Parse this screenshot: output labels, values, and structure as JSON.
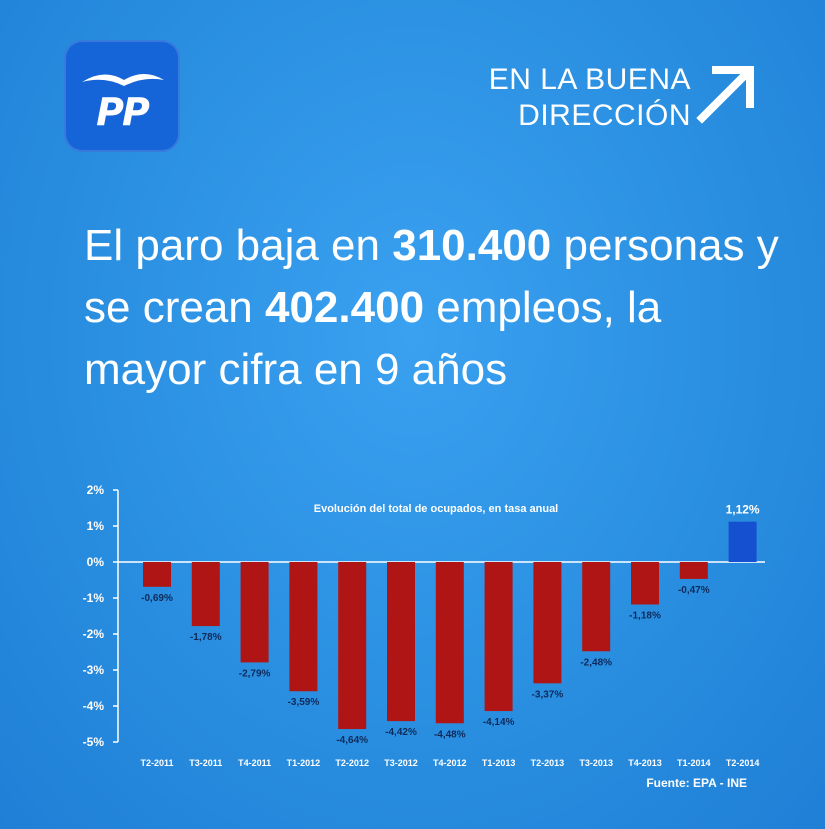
{
  "logo": {
    "text": "PP"
  },
  "slogan": {
    "line1_prefix": "EN LA",
    "line1_emph": "BUENA",
    "line2": "DIRECCIÓN"
  },
  "headline": {
    "part1": "El paro baja en ",
    "num1": "310.400",
    "part2": " personas y se crean ",
    "num2": "402.400",
    "part3": " empleos, la mayor cifra en 9 años"
  },
  "source": "Fuente: EPA - INE",
  "colors": {
    "negative_bar": "#b01515",
    "positive_bar": "#1550d0",
    "background": "#2a8fe0"
  },
  "chart_data": {
    "type": "bar",
    "title": "Evolución del total de ocupados, en tasa anual",
    "categories": [
      "T2-2011",
      "T3-2011",
      "T4-2011",
      "T1-2012",
      "T2-2012",
      "T3-2012",
      "T4-2012",
      "T1-2013",
      "T2-2013",
      "T3-2013",
      "T4-2013",
      "T1-2014",
      "T2-2014"
    ],
    "values": [
      -0.69,
      -1.78,
      -2.79,
      -3.59,
      -4.64,
      -4.42,
      -4.48,
      -4.14,
      -3.37,
      -2.48,
      -1.18,
      -0.47,
      1.12
    ],
    "value_labels": [
      "-0,69%",
      "-1,78%",
      "-2,79%",
      "-3,59%",
      "-4,64%",
      "-4,42%",
      "-4,48%",
      "-4,14%",
      "-3,37%",
      "-2,48%",
      "-1,18%",
      "-0,47%",
      "1,12%"
    ],
    "yticks": [
      2,
      1,
      0,
      -1,
      -2,
      -3,
      -4,
      -5
    ],
    "ytick_labels": [
      "2%",
      "1%",
      "0%",
      "-1%",
      "-2%",
      "-3%",
      "-4%",
      "-5%"
    ],
    "ylim": [
      -5,
      2
    ],
    "xlabel": "",
    "ylabel": ""
  }
}
